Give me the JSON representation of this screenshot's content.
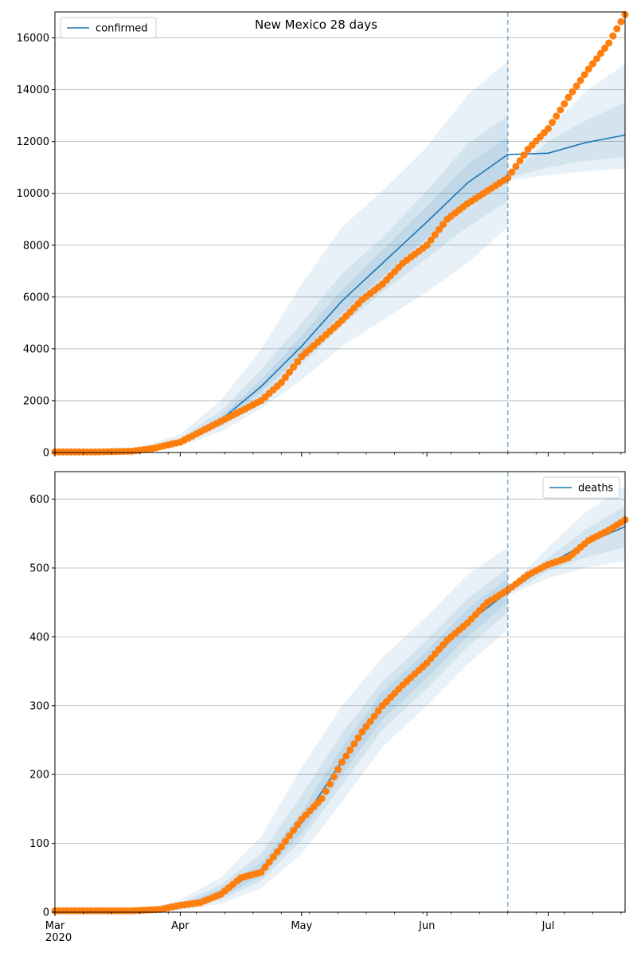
{
  "chart_data": [
    {
      "type": "line",
      "title": "New Mexico 28 days",
      "xlabel": "",
      "ylabel": "",
      "x_axis": {
        "type": "date",
        "start": "2020-03-01",
        "end": "2020-07-20",
        "tick_labels": [
          "Mar\n2020",
          "Apr",
          "May",
          "Jun",
          "Jul"
        ],
        "tick_dates": [
          "2020-03-01",
          "2020-04-01",
          "2020-05-01",
          "2020-06-01",
          "2020-07-01"
        ]
      },
      "ylim": [
        0,
        17000
      ],
      "yticks": [
        0,
        2000,
        4000,
        6000,
        8000,
        10000,
        12000,
        14000,
        16000
      ],
      "grid": "y",
      "legend_position": "top-left",
      "forecast_start": "2020-06-21",
      "colors": {
        "model": "#1f77b4",
        "observed": "#ff7f0e",
        "band": "#1f77b4"
      },
      "series": [
        {
          "name": "confirmed",
          "kind": "model-median",
          "dates": [
            "2020-03-01",
            "2020-03-20",
            "2020-04-01",
            "2020-04-11",
            "2020-04-21",
            "2020-05-01",
            "2020-05-11",
            "2020-05-21",
            "2020-06-01",
            "2020-06-11",
            "2020-06-21",
            "2020-07-01",
            "2020-07-10",
            "2020-07-20"
          ],
          "values": [
            0,
            50,
            420,
            1250,
            2550,
            4100,
            5850,
            7300,
            8900,
            10400,
            11500,
            11550,
            11950,
            12250
          ]
        },
        {
          "kind": "observed",
          "dates": [
            "2020-03-01",
            "2020-03-10",
            "2020-03-20",
            "2020-03-25",
            "2020-04-01",
            "2020-04-06",
            "2020-04-11",
            "2020-04-16",
            "2020-04-21",
            "2020-04-26",
            "2020-05-01",
            "2020-05-06",
            "2020-05-11",
            "2020-05-16",
            "2020-05-21",
            "2020-05-26",
            "2020-06-01",
            "2020-06-06",
            "2020-06-11",
            "2020-06-16",
            "2020-06-21",
            "2020-06-26",
            "2020-07-01",
            "2020-07-06",
            "2020-07-11",
            "2020-07-16",
            "2020-07-20"
          ],
          "values": [
            20,
            20,
            50,
            150,
            400,
            800,
            1200,
            1600,
            2000,
            2700,
            3700,
            4400,
            5100,
            5900,
            6500,
            7300,
            8000,
            9000,
            9600,
            10100,
            10600,
            11700,
            12500,
            13700,
            14800,
            15800,
            16900
          ]
        }
      ],
      "bands": [
        {
          "dates": [
            "2020-03-01",
            "2020-03-20",
            "2020-04-01",
            "2020-04-11",
            "2020-04-21",
            "2020-05-01",
            "2020-05-11",
            "2020-05-21",
            "2020-06-01",
            "2020-06-11",
            "2020-06-21"
          ],
          "lower": [
            0,
            20,
            250,
            800,
            1700,
            2800,
            4100,
            5100,
            6200,
            7300,
            8700
          ],
          "upper": [
            0,
            100,
            700,
            2000,
            4000,
            6500,
            8700,
            10100,
            11800,
            13800,
            15100
          ]
        },
        {
          "dates": [
            "2020-03-01",
            "2020-03-20",
            "2020-04-01",
            "2020-04-11",
            "2020-04-21",
            "2020-05-01",
            "2020-05-11",
            "2020-05-21",
            "2020-06-01",
            "2020-06-11",
            "2020-06-21"
          ],
          "lower": [
            0,
            30,
            320,
            1000,
            2100,
            3400,
            4900,
            6200,
            7500,
            8700,
            9700
          ],
          "upper": [
            0,
            70,
            560,
            1600,
            3200,
            5000,
            6900,
            8300,
            10100,
            11900,
            13000
          ]
        },
        {
          "dates": [
            "2020-03-01",
            "2020-03-20",
            "2020-04-01",
            "2020-04-11",
            "2020-04-21",
            "2020-05-01",
            "2020-05-11",
            "2020-05-21",
            "2020-06-01",
            "2020-06-11",
            "2020-06-21"
          ],
          "lower": [
            0,
            40,
            370,
            1120,
            2350,
            3800,
            5400,
            6800,
            8300,
            9600,
            10600
          ],
          "upper": [
            0,
            60,
            480,
            1400,
            2800,
            4500,
            6300,
            7800,
            9500,
            11100,
            12200
          ]
        },
        {
          "dates": [
            "2020-06-21",
            "2020-07-01",
            "2020-07-10",
            "2020-07-20"
          ],
          "lower": [
            10500,
            10700,
            10850,
            10950
          ],
          "upper": [
            10700,
            12500,
            13900,
            15000
          ]
        },
        {
          "dates": [
            "2020-06-21",
            "2020-07-01",
            "2020-07-10",
            "2020-07-20"
          ],
          "lower": [
            10600,
            11000,
            11250,
            11400
          ],
          "upper": [
            10650,
            12000,
            12800,
            13500
          ]
        }
      ]
    },
    {
      "type": "line",
      "title": "",
      "xlabel": "",
      "ylabel": "",
      "x_axis": {
        "type": "date",
        "start": "2020-03-01",
        "end": "2020-07-20",
        "tick_labels": [
          "Mar\n2020",
          "Apr",
          "May",
          "Jun",
          "Jul"
        ],
        "tick_dates": [
          "2020-03-01",
          "2020-04-01",
          "2020-05-01",
          "2020-06-01",
          "2020-07-01"
        ]
      },
      "ylim": [
        0,
        640
      ],
      "yticks": [
        0,
        100,
        200,
        300,
        400,
        500,
        600
      ],
      "grid": "y",
      "legend_position": "top-right",
      "forecast_start": "2020-06-21",
      "colors": {
        "model": "#1f77b4",
        "observed": "#ff7f0e",
        "band": "#1f77b4"
      },
      "series": [
        {
          "name": "deaths",
          "kind": "model-median",
          "dates": [
            "2020-03-01",
            "2020-03-24",
            "2020-04-01",
            "2020-04-11",
            "2020-04-21",
            "2020-05-01",
            "2020-05-11",
            "2020-05-21",
            "2020-06-01",
            "2020-06-11",
            "2020-06-21",
            "2020-07-01",
            "2020-07-10",
            "2020-07-20"
          ],
          "values": [
            0,
            2,
            8,
            28,
            62,
            130,
            220,
            300,
            360,
            420,
            465,
            505,
            535,
            560
          ]
        },
        {
          "kind": "observed",
          "dates": [
            "2020-03-01",
            "2020-03-20",
            "2020-03-27",
            "2020-04-01",
            "2020-04-06",
            "2020-04-11",
            "2020-04-16",
            "2020-04-21",
            "2020-04-26",
            "2020-05-01",
            "2020-05-06",
            "2020-05-11",
            "2020-05-16",
            "2020-05-21",
            "2020-05-26",
            "2020-06-01",
            "2020-06-06",
            "2020-06-11",
            "2020-06-16",
            "2020-06-21",
            "2020-06-26",
            "2020-07-01",
            "2020-07-06",
            "2020-07-11",
            "2020-07-16",
            "2020-07-20"
          ],
          "values": [
            2,
            2,
            4,
            10,
            14,
            26,
            50,
            58,
            95,
            135,
            165,
            218,
            262,
            300,
            330,
            362,
            395,
            420,
            450,
            468,
            490,
            505,
            515,
            540,
            555,
            570
          ]
        }
      ],
      "bands": [
        {
          "dates": [
            "2020-03-01",
            "2020-03-24",
            "2020-04-01",
            "2020-04-11",
            "2020-04-21",
            "2020-05-01",
            "2020-05-11",
            "2020-05-21",
            "2020-06-01",
            "2020-06-11",
            "2020-06-21"
          ],
          "lower": [
            0,
            0,
            3,
            12,
            35,
            85,
            160,
            240,
            300,
            360,
            410
          ],
          "upper": [
            0,
            5,
            18,
            50,
            110,
            210,
            300,
            370,
            430,
            490,
            530
          ]
        },
        {
          "dates": [
            "2020-03-01",
            "2020-03-24",
            "2020-04-01",
            "2020-04-11",
            "2020-04-21",
            "2020-05-01",
            "2020-05-11",
            "2020-05-21",
            "2020-06-01",
            "2020-06-11",
            "2020-06-21"
          ],
          "lower": [
            0,
            1,
            5,
            18,
            45,
            105,
            185,
            265,
            325,
            385,
            435
          ],
          "upper": [
            0,
            3,
            13,
            40,
            85,
            170,
            260,
            335,
            395,
            455,
            500
          ]
        },
        {
          "dates": [
            "2020-03-01",
            "2020-03-24",
            "2020-04-01",
            "2020-04-11",
            "2020-04-21",
            "2020-05-01",
            "2020-05-11",
            "2020-05-21",
            "2020-06-01",
            "2020-06-11",
            "2020-06-21"
          ],
          "lower": [
            0,
            1.5,
            6,
            22,
            52,
            115,
            200,
            280,
            340,
            400,
            450
          ],
          "upper": [
            0,
            2.5,
            10,
            34,
            72,
            145,
            240,
            320,
            380,
            440,
            485
          ]
        },
        {
          "dates": [
            "2020-06-21",
            "2020-07-01",
            "2020-07-10",
            "2020-07-20"
          ],
          "lower": [
            460,
            485,
            500,
            510
          ],
          "upper": [
            470,
            530,
            580,
            620
          ]
        },
        {
          "dates": [
            "2020-06-21",
            "2020-07-01",
            "2020-07-10",
            "2020-07-20"
          ],
          "lower": [
            462,
            495,
            515,
            530
          ],
          "upper": [
            468,
            515,
            555,
            590
          ]
        }
      ]
    }
  ]
}
